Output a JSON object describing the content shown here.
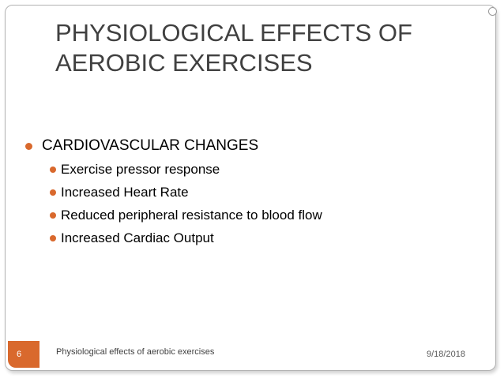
{
  "slide": {
    "title": "PHYSIOLOGICAL EFFECTS OF\nAEROBIC EXERCISES",
    "bullets": [
      {
        "label": "CARDIOVASCULAR CHANGES",
        "sub": [
          "Exercise pressor response",
          "Increased Heart Rate",
          "Reduced peripheral resistance to blood flow",
          "Increased Cardiac Output"
        ]
      }
    ],
    "footer": {
      "slide_number": "6",
      "title": "Physiological effects of aerobic exercises",
      "date": "9/18/2018"
    }
  },
  "colors": {
    "accent": "#d9692d",
    "title_text": "#404040",
    "frame_border": "#b3b3b3"
  }
}
